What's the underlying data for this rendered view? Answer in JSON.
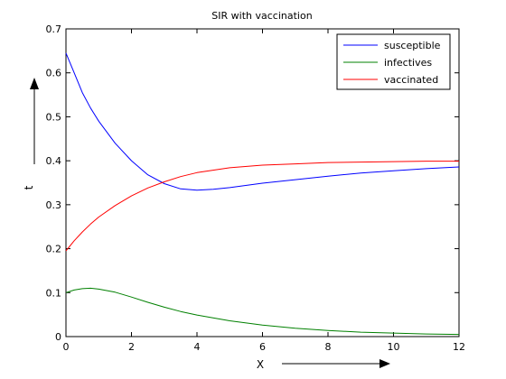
{
  "chart_data": {
    "type": "line",
    "title": "SIR with vaccination",
    "xlabel": "X",
    "ylabel": "t",
    "xlim": [
      0,
      12
    ],
    "ylim": [
      0,
      0.7
    ],
    "xticks": [
      0,
      2,
      4,
      6,
      8,
      10,
      12
    ],
    "yticks": [
      0,
      0.1,
      0.2,
      0.3,
      0.4,
      0.5,
      0.6,
      0.7
    ],
    "grid": false,
    "legend_position": "top-right",
    "series": [
      {
        "name": "susceptible",
        "color": "#0000ff",
        "x": [
          0,
          0.25,
          0.5,
          0.75,
          1,
          1.5,
          2,
          2.5,
          3,
          3.5,
          4,
          4.5,
          5,
          6,
          7,
          8,
          9,
          10,
          11,
          12
        ],
        "y": [
          0.645,
          0.6,
          0.555,
          0.52,
          0.49,
          0.44,
          0.4,
          0.368,
          0.348,
          0.336,
          0.333,
          0.335,
          0.339,
          0.349,
          0.357,
          0.365,
          0.372,
          0.377,
          0.382,
          0.386
        ]
      },
      {
        "name": "infectives",
        "color": "#008000",
        "x": [
          0,
          0.25,
          0.5,
          0.75,
          1,
          1.5,
          2,
          2.5,
          3,
          3.5,
          4,
          5,
          6,
          7,
          8,
          9,
          10,
          11,
          12
        ],
        "y": [
          0.1,
          0.106,
          0.109,
          0.11,
          0.108,
          0.101,
          0.09,
          0.078,
          0.067,
          0.057,
          0.049,
          0.036,
          0.026,
          0.019,
          0.014,
          0.01,
          0.008,
          0.006,
          0.005
        ]
      },
      {
        "name": "vaccinated",
        "color": "#ff0000",
        "x": [
          0,
          0.25,
          0.5,
          0.75,
          1,
          1.5,
          2,
          2.5,
          3,
          3.5,
          4,
          5,
          6,
          7,
          8,
          9,
          10,
          11,
          12
        ],
        "y": [
          0.195,
          0.218,
          0.238,
          0.256,
          0.272,
          0.298,
          0.32,
          0.338,
          0.352,
          0.364,
          0.373,
          0.384,
          0.39,
          0.393,
          0.396,
          0.397,
          0.398,
          0.399,
          0.399
        ]
      }
    ]
  }
}
